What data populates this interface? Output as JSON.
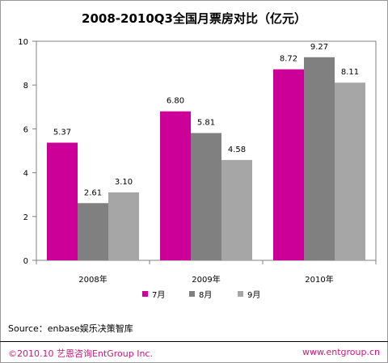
{
  "colors": {
    "jul": "#cc0099",
    "aug": "#808080",
    "sep": "#a6a6a6",
    "footer": "#c8197d"
  },
  "chart_data": {
    "type": "bar",
    "title": "2008-2010Q3全国月票房对比（亿元）",
    "categories": [
      "2008年",
      "2009年",
      "2010年"
    ],
    "series": [
      {
        "name": "7月",
        "values": [
          5.37,
          6.8,
          8.72
        ],
        "labels": [
          "5.37",
          "6.80",
          "8.72"
        ]
      },
      {
        "name": "8月",
        "values": [
          2.61,
          5.81,
          9.27
        ],
        "labels": [
          "2.61",
          "5.81",
          "9.27"
        ]
      },
      {
        "name": "9月",
        "values": [
          3.1,
          4.58,
          8.11
        ],
        "labels": [
          "3.10",
          "4.58",
          "8.11"
        ]
      }
    ],
    "yticks": [
      "0",
      "2",
      "4",
      "6",
      "8",
      "10"
    ],
    "ylim": [
      0,
      10
    ],
    "grid": false,
    "legend": "bottom"
  },
  "source": "Source：enbase娱乐决策智库",
  "footer": {
    "left": "©2010.10  艺恩咨询EntGroup Inc.",
    "right": "www.entgroup.cn"
  }
}
